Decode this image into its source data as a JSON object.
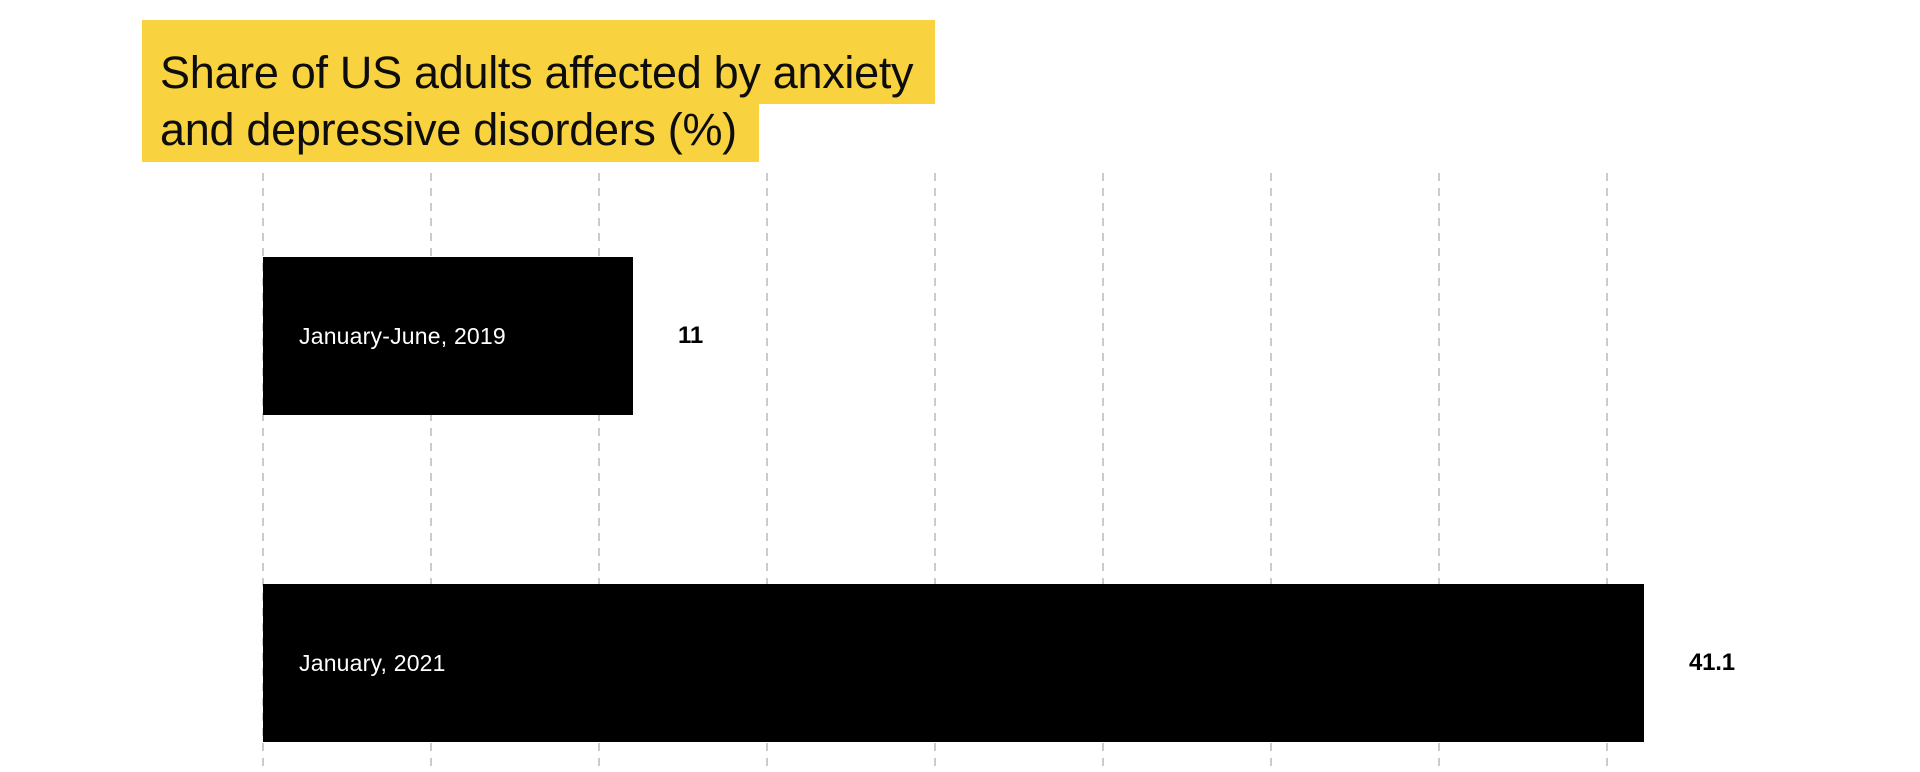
{
  "page": {
    "background_color": "#FFFFFF"
  },
  "title": {
    "text": "Share of US adults affected by anxiety and depressive disorders (%)",
    "line1": "Share of US adults affected by anxiety",
    "line2": "and depressive disorders (%)",
    "highlight_color": "#F8D23F",
    "text_color": "#0D0D0D"
  },
  "chart_data": {
    "type": "bar",
    "orientation": "horizontal",
    "title": "Share of US adults affected by anxiety and depressive disorders (%)",
    "categories": [
      "January-June, 2019",
      "January, 2021"
    ],
    "values": [
      11,
      41.1
    ],
    "value_labels": [
      "11",
      "41.1"
    ],
    "xlim": [
      0,
      45
    ],
    "x_gridlines": [
      0,
      5,
      10,
      15,
      20,
      25,
      30,
      35,
      40
    ],
    "x_tick_labels_visible": false,
    "grid_style": "dashed-vertical",
    "gridline_color": "#CBCBCB",
    "bar_color": "#000000",
    "bar_label_color": "#FFFFFF",
    "value_label_color": "#000000",
    "legend": "none"
  }
}
